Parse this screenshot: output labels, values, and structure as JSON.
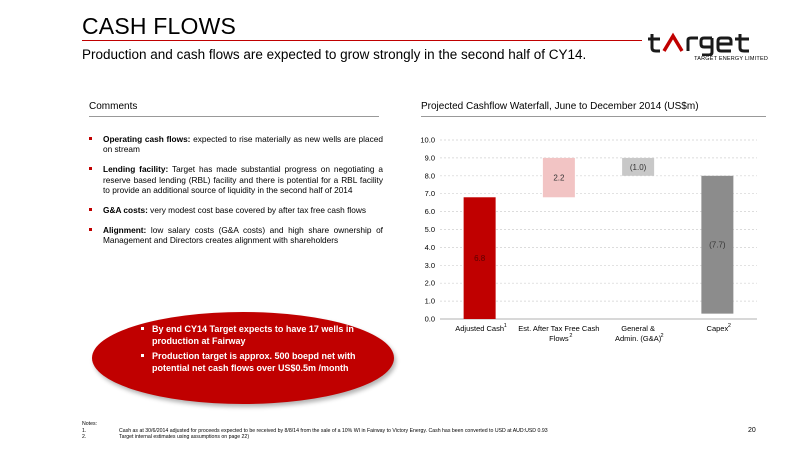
{
  "header": {
    "title": "CASH FLOWS",
    "subtitle": "Production and cash flows are expected to grow strongly in the second half of CY14."
  },
  "logo": {
    "word": "target",
    "tagline": "TARGET ENERGY LIMITED"
  },
  "comments": {
    "heading": "Comments",
    "items": [
      {
        "label": "Operating cash flows:",
        "text": " expected to rise materially as new wells are placed on stream"
      },
      {
        "label": "Lending facility:",
        "text": " Target has made substantial progress on negotiating a reserve based lending (RBL) facility and there is potential for a RBL facility to provide an additional source of liquidity in the second half of 2014"
      },
      {
        "label": "G&A costs:",
        "text": " very modest cost base covered by after tax free cash flows"
      },
      {
        "label": "Alignment:",
        "text": " low salary costs (G&A costs) and high share ownership of Management and Directors creates alignment with shareholders"
      }
    ]
  },
  "callout": {
    "items": [
      "By end CY14 Target expects to have 17 wells in production at Fairway",
      "Production target is approx. 500 boepd net with potential net cash flows over US$0.5m /month"
    ]
  },
  "chart_data": {
    "type": "bar",
    "subtype": "waterfall",
    "title": "Projected Cashflow Waterfall, June to December 2014 (US$m)",
    "categories": [
      "Adjusted Cash",
      "Est. After Tax Free Cash Flows",
      "General & Admin. (G&A)",
      "Capex"
    ],
    "category_lines": [
      [
        "Adjusted Cash"
      ],
      [
        "Est. After Tax Free Cash",
        "Flows"
      ],
      [
        "General &",
        "Admin. (G&A)"
      ],
      [
        "Capex"
      ]
    ],
    "footnote_marks": [
      "1",
      "2",
      "2",
      "2"
    ],
    "values": [
      6.8,
      2.2,
      -1.0,
      -7.7
    ],
    "data_labels": [
      "6.8",
      "2.2",
      "(1.0)",
      "(7.7)"
    ],
    "bar_bottoms": [
      0.0,
      6.8,
      8.0,
      0.3
    ],
    "bar_tops": [
      6.8,
      9.0,
      9.0,
      8.0
    ],
    "bar_colors": [
      "#c00000",
      "#f2c4c4",
      "#c8c8c8",
      "#8c8c8c"
    ],
    "ylim": [
      0,
      10
    ],
    "yticks": [
      "0.0",
      "1.0",
      "2.0",
      "3.0",
      "4.0",
      "5.0",
      "6.0",
      "7.0",
      "8.0",
      "9.0",
      "10.0"
    ],
    "grid": true,
    "xlabel": "",
    "ylabel": ""
  },
  "notes": {
    "heading": "Notes:",
    "items": [
      {
        "num": "1.",
        "text": "Cash as at 30/6/2014 adjusted for proceeds expected to be received by 8/8/14 from the sale of a 10% WI in Fairway to Victory Energy. Cash has been converted to USD at AUD:USD 0.93"
      },
      {
        "num": "2.",
        "text": "Target internal estimates using assumptions on page 22)"
      }
    ]
  },
  "page_number": "20"
}
